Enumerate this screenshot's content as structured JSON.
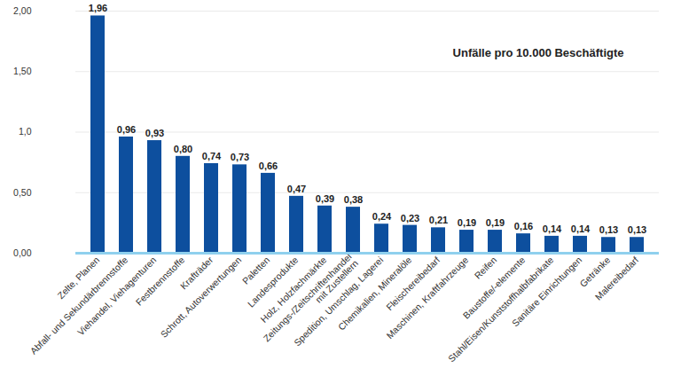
{
  "chart_data": {
    "type": "bar",
    "title": "Unfälle pro 10.000 Beschäftigte",
    "categories": [
      "Zelte, Planen",
      "Abfall- und Sekundärbrennstoffe",
      "Viehandel, Viehagenturen",
      "Festbrennstoffe",
      "Krafträder",
      "Schrott, Autoverwertungen",
      "Paletten",
      "Landesprodukte",
      "Holz, Holzfachmärkte",
      "Zeitungs-/Zeitschriftenhandel\nmit Zustellern",
      "Spedition, Umschlag, Lagerei",
      "Chemikalien, Mineralöle",
      "Fleischereibedarf",
      "Maschinen, Kraftfahrzeuge",
      "Reifen",
      "Baustoffe/-elemente",
      "Stahl/Eisen/Kunststoffhalbfabrikate",
      "Sanitäre Einrichtungen",
      "Getränke",
      "Malereibedarf"
    ],
    "values": [
      1.96,
      0.96,
      0.93,
      0.8,
      0.74,
      0.73,
      0.66,
      0.47,
      0.39,
      0.38,
      0.24,
      0.23,
      0.21,
      0.19,
      0.19,
      0.16,
      0.14,
      0.14,
      0.13,
      0.13
    ],
    "value_labels": [
      "1,96",
      "0,96",
      "0,93",
      "0,80",
      "0,74",
      "0,73",
      "0,66",
      "0,47",
      "0,39",
      "0,38",
      "0,24",
      "0,23",
      "0,21",
      "0,19",
      "0,19",
      "0,16",
      "0,14",
      "0,14",
      "0,13",
      "0,13"
    ],
    "data_labels": true,
    "color": "#0d4f9e",
    "ylim": [
      0,
      2
    ],
    "yticks": [
      {
        "value": 0,
        "label": "0,00"
      },
      {
        "value": 0.5,
        "label": "0,50"
      },
      {
        "value": 1,
        "label": "1,0"
      },
      {
        "value": 1.5,
        "label": "1,50"
      },
      {
        "value": 2,
        "label": "2,00"
      }
    ],
    "grid": true
  }
}
